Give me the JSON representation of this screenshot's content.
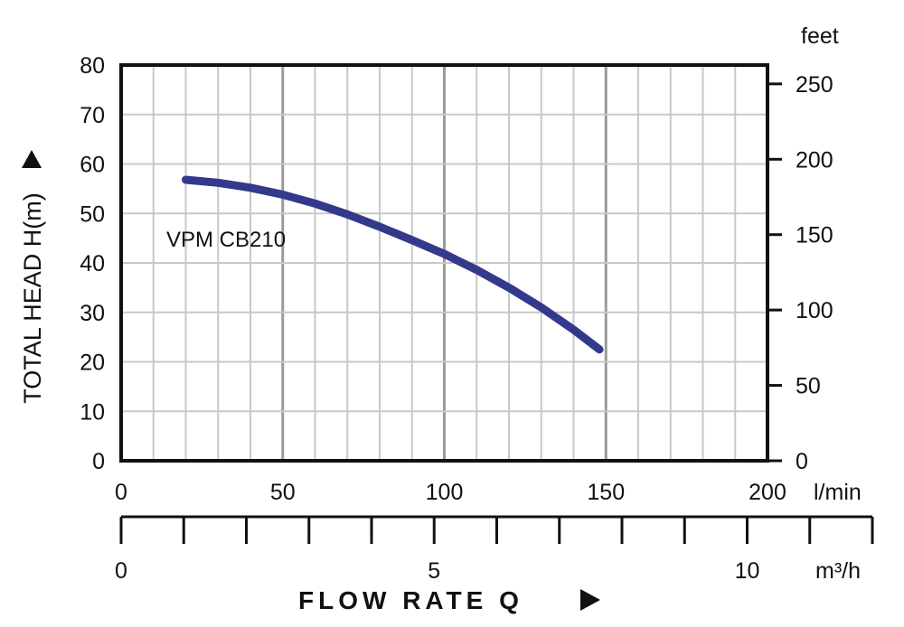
{
  "chart_data": {
    "type": "line",
    "ylabel": "TOTAL HEAD H(m)",
    "xlabel": "FLOW RATE Q",
    "x_unit": "l/min",
    "x2_unit": "m³/h",
    "y2_unit": "feet",
    "xlim": [
      0,
      200
    ],
    "ylim": [
      0,
      80
    ],
    "y2lim": [
      0,
      262.5
    ],
    "x2lim": [
      0,
      12
    ],
    "x_ticks": [
      0,
      50,
      100,
      150,
      200
    ],
    "y_ticks": [
      0,
      10,
      20,
      30,
      40,
      50,
      60,
      70,
      80
    ],
    "y2_ticks": [
      0,
      50,
      100,
      150,
      200,
      250
    ],
    "x2_ticks": [
      0,
      5,
      10
    ],
    "grid": true,
    "series": [
      {
        "name": "VPM CB210",
        "color": "#333a8c",
        "x": [
          20,
          30,
          40,
          50,
          60,
          70,
          80,
          90,
          100,
          110,
          120,
          130,
          140,
          148
        ],
        "y": [
          56.8,
          56.2,
          55.2,
          53.8,
          52.0,
          49.8,
          47.3,
          44.6,
          41.8,
          38.6,
          35.0,
          31.0,
          26.5,
          22.5
        ]
      }
    ]
  }
}
